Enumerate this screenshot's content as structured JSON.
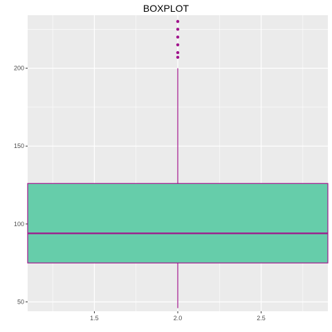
{
  "chart_data": {
    "type": "boxplot",
    "title": "BOXPLOT",
    "xlabel": "",
    "ylabel": "",
    "x_ticks": [
      1.5,
      2.0,
      2.5
    ],
    "x_tick_labels": [
      "1.5",
      "2.0",
      "2.5"
    ],
    "xlim": [
      1.1,
      2.9
    ],
    "y_ticks": [
      50,
      100,
      150,
      200
    ],
    "y_tick_labels": [
      "50",
      "100",
      "150",
      "200"
    ],
    "ylim": [
      44,
      234
    ],
    "grid": true,
    "box": {
      "x_center": 2.0,
      "x_from": 1.1,
      "x_to": 2.9,
      "whisker_low": 46,
      "q1": 75,
      "median": 94,
      "q3": 126,
      "whisker_high": 200,
      "outliers": [
        207,
        210,
        215,
        220,
        225,
        230
      ]
    },
    "colors": {
      "box_fill": "#66CDAA",
      "box_line": "#A0148C",
      "panel_bg": "#EBEBEB",
      "grid": "#FFFFFF",
      "tick_text": "#4D4D4D"
    }
  }
}
